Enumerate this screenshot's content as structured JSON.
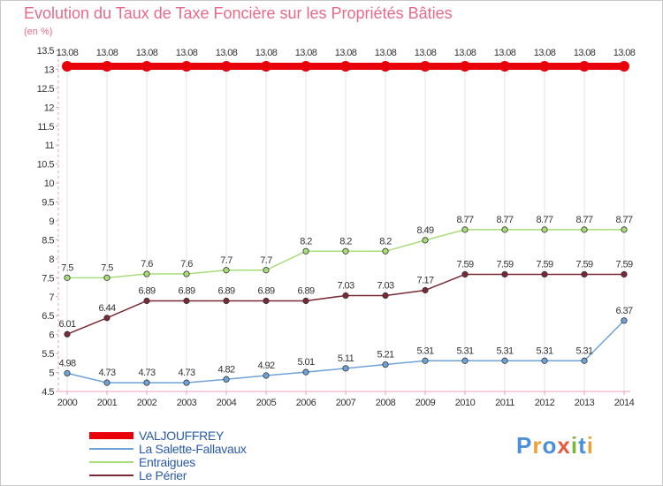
{
  "header": {
    "title": "Evolution du Taux de Taxe Foncière sur les Propriétés Bâties",
    "subtitle": "(en %)"
  },
  "logo": {
    "letters": [
      "P",
      "r",
      "o",
      "x",
      "i",
      "t",
      "i"
    ],
    "colors": [
      "#4a90d9",
      "#e8a33a",
      "#4a90d9",
      "#e85a3a",
      "#7ab83a",
      "#4a90d9",
      "#e8a33a"
    ]
  },
  "colors": {
    "title": "#e86a8a",
    "axis": "#e8a0b4",
    "grid": "#e3e3e3",
    "tick_text": "#333333",
    "value_text": "#333333"
  },
  "chart_data": {
    "type": "line",
    "title": "Evolution du Taux de Taxe Foncière sur les Propriétés Bâties",
    "ylabel": "(en %)",
    "xlabel": "",
    "x": [
      "2000",
      "2001",
      "2002",
      "2003",
      "2004",
      "2005",
      "2006",
      "2007",
      "2008",
      "2009",
      "2010",
      "2011",
      "2012",
      "2013",
      "2014"
    ],
    "ylim": [
      4.5,
      13.5
    ],
    "yticks": [
      "4.5",
      "5",
      "5.5",
      "6",
      "6.5",
      "7",
      "7.5",
      "8",
      "8.5",
      "9",
      "9.5",
      "10",
      "10.5",
      "11",
      "11.5",
      "12",
      "12.5",
      "13",
      "13.5"
    ],
    "legend_position": "bottom-left",
    "series": [
      {
        "name": "VALJOUFFREY",
        "color": "#e8000b",
        "labels_above": true,
        "values": [
          13.08,
          13.08,
          13.08,
          13.08,
          13.08,
          13.08,
          13.08,
          13.08,
          13.08,
          13.08,
          13.08,
          13.08,
          13.08,
          13.08,
          13.08
        ],
        "labels": [
          "13.08",
          "13.08",
          "13.08",
          "13.08",
          "13.08",
          "13.08",
          "13.08",
          "13.08",
          "13.08",
          "13.08",
          "13.08",
          "13.08",
          "13.08",
          "13.08",
          "13.08"
        ]
      },
      {
        "name": "La Salette-Fallavaux",
        "color": "#6fa3d8",
        "labels_above": true,
        "values": [
          4.98,
          4.73,
          4.73,
          4.73,
          4.82,
          4.92,
          5.01,
          5.11,
          5.21,
          5.31,
          5.31,
          5.31,
          5.31,
          5.31,
          6.37
        ],
        "labels": [
          "4.98",
          "4.73",
          "4.73",
          "4.73",
          "4.82",
          "4.92",
          "5.01",
          "5.11",
          "5.21",
          "5.31",
          "5.31",
          "5.31",
          "5.31",
          "5.31",
          "6.37"
        ]
      },
      {
        "name": "Entraigues",
        "color": "#a8dc78",
        "labels_above": true,
        "values": [
          7.5,
          7.5,
          7.6,
          7.6,
          7.7,
          7.7,
          8.2,
          8.2,
          8.2,
          8.49,
          8.77,
          8.77,
          8.77,
          8.77,
          8.77
        ],
        "labels": [
          "7.5",
          "7.5",
          "7.6",
          "7.6",
          "7.7",
          "7.7",
          "8.2",
          "8.2",
          "8.2",
          "8.49",
          "8.77",
          "8.77",
          "8.77",
          "8.77",
          "8.77"
        ]
      },
      {
        "name": "Le Périer",
        "color": "#7a2a36",
        "labels_above": true,
        "values": [
          6.01,
          6.44,
          6.89,
          6.89,
          6.89,
          6.89,
          6.89,
          7.03,
          7.03,
          7.17,
          7.59,
          7.59,
          7.59,
          7.59,
          7.59
        ],
        "labels": [
          "6.01",
          "6.44",
          "6.89",
          "6.89",
          "6.89",
          "6.89",
          "6.89",
          "7.03",
          "7.03",
          "7.17",
          "7.59",
          "7.59",
          "7.59",
          "7.59",
          "7.59"
        ]
      }
    ]
  }
}
